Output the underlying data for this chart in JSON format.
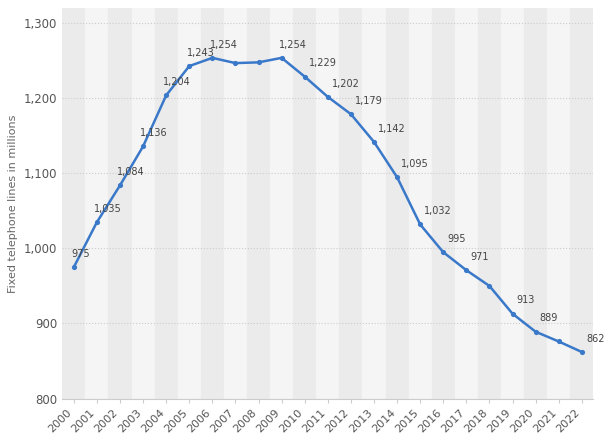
{
  "years": [
    2000,
    2001,
    2002,
    2003,
    2004,
    2005,
    2006,
    2007,
    2008,
    2009,
    2010,
    2011,
    2012,
    2013,
    2014,
    2015,
    2016,
    2017,
    2018,
    2019,
    2020,
    2021,
    2022
  ],
  "values": [
    975,
    1035,
    1084,
    1136,
    1204,
    1243,
    1254,
    1247,
    1248,
    1254,
    1229,
    1202,
    1179,
    1142,
    1095,
    1032,
    995,
    971,
    950,
    913,
    889,
    876,
    862
  ],
  "label_values_map": {
    "2000": 975,
    "2001": 1035,
    "2002": 1084,
    "2003": 1136,
    "2004": 1204,
    "2005": 1243,
    "2006": 1254,
    "2009": 1254,
    "2010": 1229,
    "2011": 1202,
    "2012": 1179,
    "2013": 1142,
    "2014": 1095,
    "2015": 1032,
    "2016": 995,
    "2017": 971,
    "2019": 913,
    "2020": 889,
    "2022": 862
  },
  "line_color": "#3a78c9",
  "marker_color": "#3a78c9",
  "bg_color": "#ffffff",
  "plot_bg_color": "#ffffff",
  "ylabel": "Fixed telephone lines in millions",
  "ylim": [
    800,
    1320
  ],
  "yticks": [
    800,
    900,
    1000,
    1100,
    1200,
    1300
  ],
  "ytick_labels": [
    "800",
    "900",
    "1,000",
    "1,100",
    "1,200",
    "1,300"
  ],
  "grid_color": "#cccccc",
  "col_stripe_colors": [
    "#ebebeb",
    "#f5f5f5"
  ]
}
